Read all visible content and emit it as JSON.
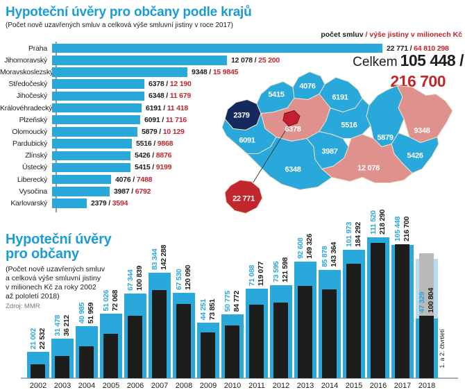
{
  "colors": {
    "cyan": "#29a8dc",
    "title_blue": "#1a9cd9",
    "red": "#c1272d",
    "dark": "#1d1d1b",
    "salmon": "#df918e",
    "navy": "#15295e",
    "praha": "#c2202e",
    "praha_border": "#8e1523",
    "border_cream": "#f0e2c4",
    "gray_bar": "#bab9b7",
    "pale_blue": "#b5dcf0"
  },
  "header": {
    "title": "Hypoteční úvěry pro občany podle krajů",
    "subtitle": "(Počet nově uzavřených smluv a celková výše smluvní jistiny v roce 2017)",
    "legend_count": "počet smluv",
    "legend_amount": "/ výše jistiny v milionech Kč",
    "total_label": "Celkem",
    "total_count": "105 448 /",
    "total_amount": "216 700"
  },
  "top_chart": {
    "chart_data": {
      "type": "bar",
      "orientation": "horizontal",
      "title": "Hypoteční úvěry pro občany podle krajů",
      "unit_note": "počet smluv / výše jistiny v milionech Kč",
      "regions": [
        {
          "name": "Praha",
          "count": 22771,
          "count_label": "22 771",
          "amount_label": "64 810 298"
        },
        {
          "name": "Jihomoravský",
          "count": 12078,
          "count_label": "12 078",
          "amount_label": "25 200"
        },
        {
          "name": "Moravskoslezský",
          "count": 9348,
          "count_label": "9348",
          "amount_label": "15 9845"
        },
        {
          "name": "Středočeský",
          "count": 6378,
          "count_label": "6378",
          "amount_label": "12 190"
        },
        {
          "name": "Jihočeský",
          "count": 6348,
          "count_label": "6348",
          "amount_label": "11 679"
        },
        {
          "name": "Královéhradecký",
          "count": 6191,
          "count_label": "6191",
          "amount_label": "11 418"
        },
        {
          "name": "Plzeňský",
          "count": 6091,
          "count_label": "6091",
          "amount_label": "11 716"
        },
        {
          "name": "Olomoucký",
          "count": 5879,
          "count_label": "5879",
          "amount_label": "10 129"
        },
        {
          "name": "Pardubický",
          "count": 5516,
          "count_label": "5516",
          "amount_label": "9868"
        },
        {
          "name": "Zlínský",
          "count": 5426,
          "count_label": "5426",
          "amount_label": "8876"
        },
        {
          "name": "Ústecký",
          "count": 5415,
          "count_label": "5415",
          "amount_label": "9199"
        },
        {
          "name": "Liberecký",
          "count": 4076,
          "count_label": "4076",
          "amount_label": "7488"
        },
        {
          "name": "Vysočina",
          "count": 3987,
          "count_label": "3987",
          "amount_label": "6792"
        },
        {
          "name": "Karlovarský",
          "count": 2379,
          "count_label": "2379",
          "amount_label": "3594"
        }
      ]
    }
  },
  "map": {
    "labels": {
      "karlovarsky": "2379",
      "ustecky": "5415",
      "liberecky": "4076",
      "kralovehradecky": "6191",
      "stredocesky": "6378",
      "plzensky": "6091",
      "jihocesky": "6348",
      "vysocina": "3987",
      "pardubicky": "5516",
      "olomoucky": "5879",
      "moravskoslezsky": "9348",
      "jihomoravsky": "12 078",
      "zlinsky": "5426",
      "praha_callout": "22 771"
    }
  },
  "bottom_chart": {
    "title": "Hypoteční úvěry\npro občany",
    "subtitle": "(Počet nově uzavřených smluv\na celková výše smluvní jistiny\nv milionech Kč za roky 2002\naž pololetí 2018)",
    "source": "Zdroj: MMR",
    "partial_note": "1. a 2. čtvrtletí",
    "chart_data": {
      "type": "bar",
      "categories": [
        "2002",
        "2003",
        "2004",
        "2005",
        "2006",
        "2007",
        "2008",
        "2009",
        "2010",
        "2011",
        "2012",
        "2013",
        "2014",
        "2015",
        "2016",
        "2017",
        "2018"
      ],
      "series": [
        {
          "name": "počet smluv",
          "values": [
            21002,
            31478,
            40985,
            51026,
            67344,
            83344,
            67530,
            44251,
            50775,
            71088,
            73595,
            92608,
            85878,
            101973,
            111520,
            105448,
            47329
          ],
          "labels": [
            "21 002",
            "31 478",
            "40 985",
            "51 026",
            "67 344",
            "83 344",
            "67 530",
            "44 251",
            "50 775",
            "71 088",
            "73 595",
            "92 608",
            "85 878",
            "101 973",
            "111 520",
            "105 448",
            "47 329"
          ]
        },
        {
          "name": "výše jistiny v milionech Kč",
          "values": [
            22532,
            36212,
            51959,
            72068,
            100839,
            142288,
            120090,
            73851,
            84772,
            119077,
            121598,
            149326,
            143364,
            184292,
            218290,
            216700,
            100804
          ],
          "labels": [
            "22 532",
            "36 212",
            "51 959",
            "72 068",
            "100 839",
            "142 288",
            "120 090",
            "73 851",
            "84 772",
            "119 077",
            "121 598",
            "149 326",
            "143 364",
            "184 292",
            "218 290",
            "216 700",
            "100 804"
          ]
        }
      ],
      "last_year_partial": true,
      "legend_position": "none",
      "grid": false
    }
  }
}
